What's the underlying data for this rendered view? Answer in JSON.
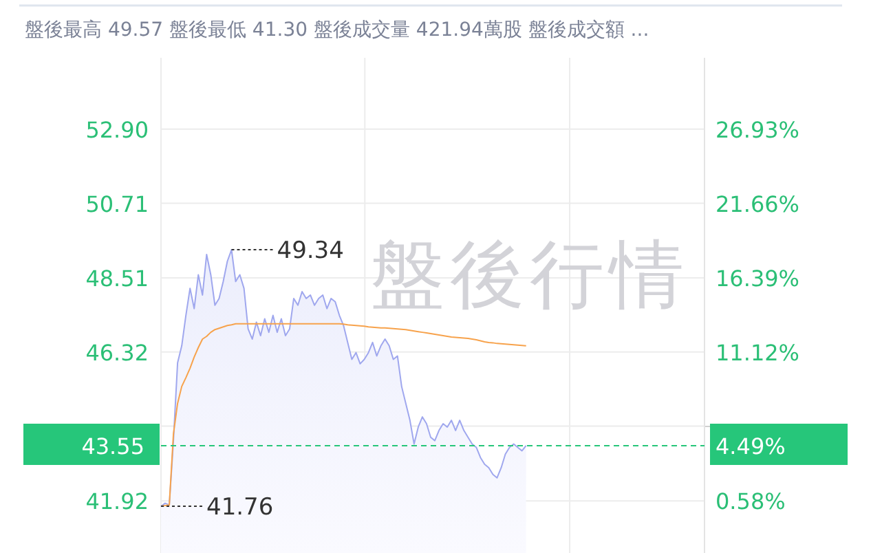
{
  "chart_data": {
    "type": "area",
    "subtitle": "盤後最高 49.57 盤後最低 41.30 盤後成交量 421.94萬股 盤後成交額 ...",
    "annotations": [
      "49.34",
      "41.76",
      "盤後行情",
      "4.49%"
    ],
    "categories": [
      null,
      null,
      null,
      null,
      null,
      null,
      null,
      null,
      null,
      null,
      null,
      null,
      null,
      null,
      null,
      null,
      null,
      null,
      null,
      null,
      null,
      null,
      null,
      null,
      null,
      null,
      null,
      null,
      null,
      null,
      null,
      null,
      null,
      null,
      null,
      null,
      null,
      null,
      null,
      null,
      null,
      null,
      null,
      null,
      null,
      null,
      null,
      null,
      null,
      null,
      null,
      null,
      null,
      null,
      null,
      null,
      null,
      null,
      null,
      null,
      null,
      null,
      null,
      null,
      null,
      null,
      null,
      null,
      null,
      null,
      null,
      null,
      null,
      null,
      null,
      null,
      null,
      null,
      null,
      null,
      null,
      null,
      null,
      null,
      null,
      null,
      null,
      null,
      null,
      null,
      null,
      null,
      null,
      null,
      null,
      null,
      null,
      null,
      null,
      null,
      null,
      null,
      null,
      null,
      null,
      null,
      null,
      null,
      null,
      null,
      null,
      null,
      null,
      null,
      null,
      null,
      null,
      null,
      null,
      null,
      null,
      null,
      null,
      null,
      null,
      null,
      null,
      null,
      null,
      null,
      null,
      null
    ],
    "series": [
      {
        "color": "#9fa7ee",
        "values": [
          41.76,
          41.85,
          41.8,
          43.7,
          46.0,
          46.5,
          47.4,
          48.2,
          47.6,
          48.6,
          48.0,
          49.2,
          48.6,
          47.7,
          47.9,
          48.4,
          49.0,
          49.34,
          48.4,
          48.6,
          48.2,
          47.0,
          46.7,
          47.2,
          46.8,
          47.3,
          46.9,
          47.4,
          46.9,
          47.3,
          46.8,
          47.0,
          47.9,
          47.7,
          48.1,
          47.9,
          48.0,
          47.7,
          47.9,
          48.0,
          47.6,
          47.9,
          47.8,
          47.4,
          47.1,
          46.6,
          46.1,
          46.3,
          45.97,
          46.1,
          46.3,
          46.6,
          46.2,
          46.5,
          46.7,
          46.5,
          46.1,
          46.2,
          45.3,
          44.8,
          44.3,
          43.6,
          44.1,
          44.4,
          44.2,
          43.8,
          43.7,
          44.0,
          44.2,
          44.1,
          44.3,
          44.0,
          44.3,
          44.0,
          43.8,
          43.6,
          43.5,
          43.2,
          43.0,
          42.9,
          42.7,
          42.6,
          42.9,
          43.3,
          43.5,
          43.6,
          43.5,
          43.4,
          43.55,
          null,
          null,
          null,
          null,
          null,
          null,
          null,
          null,
          null,
          null,
          null,
          null,
          null,
          null,
          null,
          null,
          null,
          null,
          null,
          null,
          null,
          null,
          null,
          null,
          null,
          null,
          null,
          null,
          null,
          null,
          null,
          null,
          null,
          null,
          null,
          null,
          null,
          null,
          null,
          null,
          null,
          null,
          null
        ]
      },
      {
        "type": "line",
        "color": "#f7a24b",
        "values": [
          41.76,
          41.78,
          41.8,
          43.9,
          44.8,
          45.3,
          45.56,
          45.84,
          46.17,
          46.45,
          46.7,
          46.78,
          46.9,
          46.98,
          47.02,
          47.06,
          47.1,
          47.12,
          47.15,
          47.15,
          47.15,
          47.15,
          47.15,
          47.15,
          47.15,
          47.15,
          47.15,
          47.15,
          47.15,
          47.15,
          47.15,
          47.15,
          47.15,
          47.15,
          47.15,
          47.15,
          47.15,
          47.15,
          47.15,
          47.15,
          47.15,
          47.15,
          47.15,
          47.15,
          47.14,
          47.12,
          47.11,
          47.1,
          47.09,
          47.08,
          47.06,
          47.05,
          47.04,
          47.03,
          47.03,
          47.02,
          47.01,
          47.0,
          46.99,
          46.98,
          46.96,
          46.94,
          46.92,
          46.9,
          46.88,
          46.86,
          46.84,
          46.82,
          46.8,
          46.78,
          46.76,
          46.75,
          46.74,
          46.73,
          46.72,
          46.7,
          46.68,
          46.65,
          46.62,
          46.6,
          46.59,
          46.57,
          46.56,
          46.55,
          46.54,
          46.53,
          46.52,
          46.51,
          46.5,
          null,
          null,
          null,
          null,
          null,
          null,
          null,
          null,
          null,
          null,
          null,
          null,
          null,
          null,
          null,
          null,
          null,
          null,
          null,
          null,
          null,
          null,
          null,
          null,
          null,
          null,
          null,
          null,
          null,
          null,
          null,
          null,
          null,
          null,
          null,
          null,
          null,
          null,
          null,
          null,
          null,
          null,
          null
        ]
      }
    ],
    "ylim": [
      40.38,
      55.01
    ],
    "yticks": [
      {
        "value": 41.92,
        "label": "41.92"
      },
      {
        "value": 44.13,
        "label": null
      },
      {
        "value": 46.32,
        "label": "46.32"
      },
      {
        "value": 48.51,
        "label": "48.51"
      },
      {
        "value": 50.71,
        "label": "50.71"
      },
      {
        "value": 52.9,
        "label": "52.90"
      }
    ],
    "y2lim": [
      -3.12,
      31.98
    ],
    "y2ticks": [
      {
        "value": 0.58,
        "label": "0.58%"
      },
      {
        "value": 5.85,
        "label": null
      },
      {
        "value": 11.12,
        "label": "11.12%"
      },
      {
        "value": 16.39,
        "label": "16.39%"
      },
      {
        "value": 21.66,
        "label": "21.66%"
      },
      {
        "value": 26.93,
        "label": "26.93%"
      }
    ],
    "ref_lines": [
      {
        "axis": "y",
        "value": 43.55,
        "label": "43.55",
        "color": "#26c67a",
        "line_style": "dashed"
      }
    ],
    "grid": true,
    "tick_labels": "y"
  }
}
